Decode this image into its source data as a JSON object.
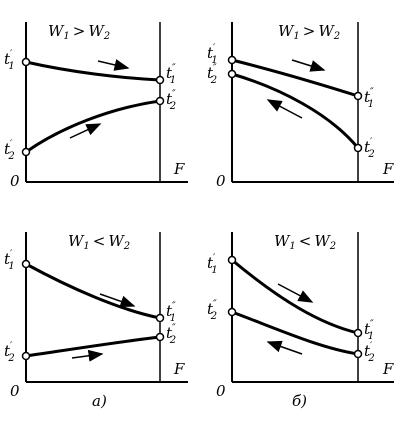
{
  "panels": [
    {
      "id": "top-left",
      "title_main": "W",
      "title_sub1": "1",
      "title_rel": ">",
      "title_main2": "W",
      "title_sub2": "2",
      "origin": "0",
      "axis": "F",
      "left_upper": {
        "t": "t",
        "sup": "′",
        "sub": "1"
      },
      "left_lower": {
        "t": "t",
        "sup": "′",
        "sub": "2"
      },
      "right_upper": {
        "t": "t",
        "sup": "″",
        "sub": "1"
      },
      "right_lower": {
        "t": "t",
        "sup": "″",
        "sub": "2"
      },
      "caption": ""
    },
    {
      "id": "top-right",
      "title_main": "W",
      "title_sub1": "1",
      "title_rel": ">",
      "title_main2": "W",
      "title_sub2": "2",
      "origin": "0",
      "axis": "F",
      "left_upper": {
        "t": "t",
        "sup": "′",
        "sub": "1"
      },
      "left_lower": {
        "t": "t",
        "sup": "″",
        "sub": "2"
      },
      "right_upper": {
        "t": "t",
        "sup": "″",
        "sub": "1"
      },
      "right_lower": {
        "t": "t",
        "sup": "′",
        "sub": "2"
      },
      "caption": ""
    },
    {
      "id": "bottom-left",
      "title_main": "W",
      "title_sub1": "1",
      "title_rel": "<",
      "title_main2": "W",
      "title_sub2": "2",
      "origin": "0",
      "axis": "F",
      "left_upper": {
        "t": "t",
        "sup": "′",
        "sub": "1"
      },
      "left_lower": {
        "t": "t",
        "sup": "′",
        "sub": "2"
      },
      "right_upper": {
        "t": "t",
        "sup": "″",
        "sub": "1"
      },
      "right_lower": {
        "t": "t",
        "sup": "″",
        "sub": "2"
      },
      "caption": "a)"
    },
    {
      "id": "bottom-right",
      "title_main": "W",
      "title_sub1": "1",
      "title_rel": "<",
      "title_main2": "W",
      "title_sub2": "2",
      "origin": "0",
      "axis": "F",
      "left_upper": {
        "t": "t",
        "sup": "′",
        "sub": "1"
      },
      "left_lower": {
        "t": "t",
        "sup": "″",
        "sub": "2"
      },
      "right_upper": {
        "t": "t",
        "sup": "″",
        "sub": "1"
      },
      "right_lower": {
        "t": "t",
        "sup": "′",
        "sub": "2"
      },
      "caption": "б)"
    }
  ]
}
